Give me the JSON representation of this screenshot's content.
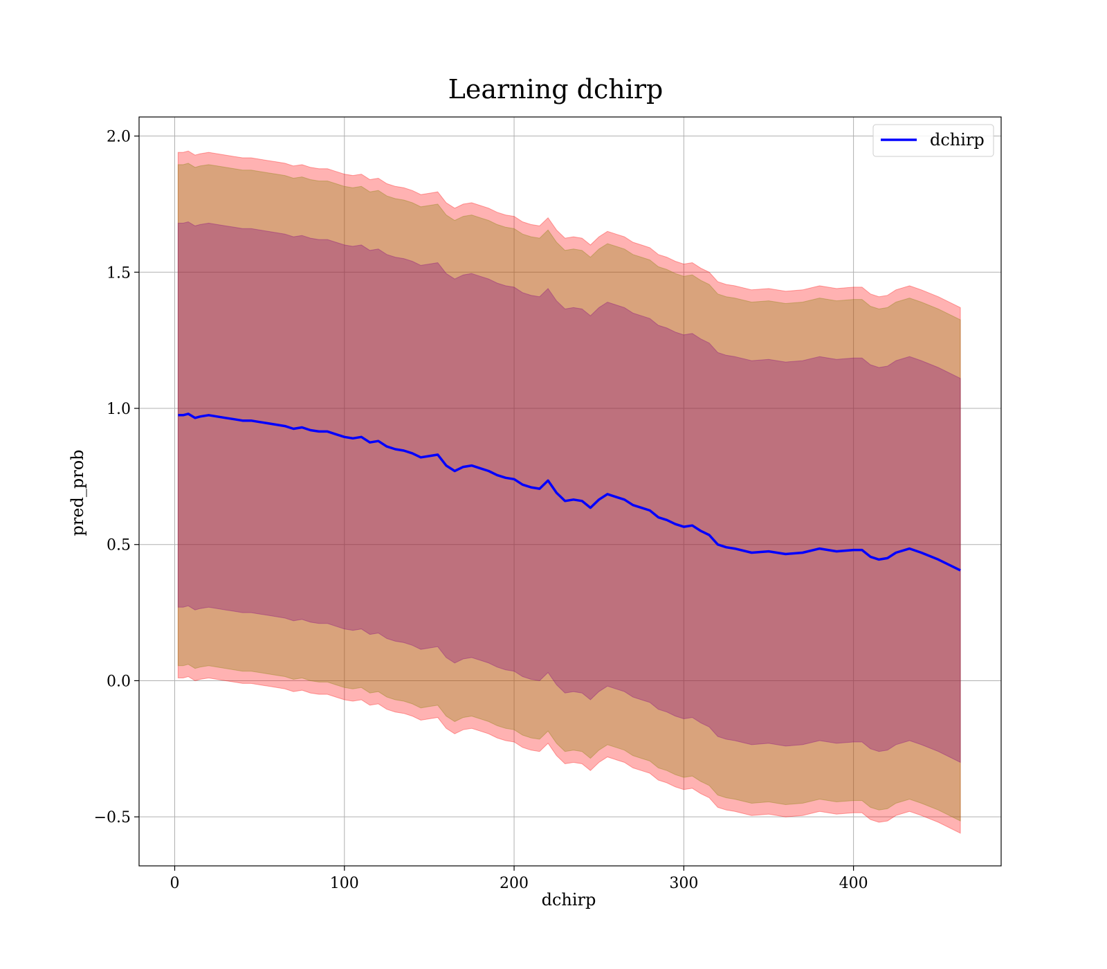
{
  "chart_data": {
    "type": "line",
    "title": "Learning dchirp",
    "xlabel": "dchirp",
    "ylabel": "pred_prob",
    "xlim": [
      -21,
      487
    ],
    "ylim": [
      -0.68,
      2.07
    ],
    "xticks": [
      0,
      100,
      200,
      300,
      400
    ],
    "yticks": [
      -0.5,
      0.0,
      0.5,
      1.0,
      1.5,
      2.0
    ],
    "ytick_labels": [
      "−0.5",
      "0.0",
      "0.5",
      "1.0",
      "1.5",
      "2.0"
    ],
    "grid": true,
    "legend": {
      "position": "top-right",
      "entries": [
        "dchirp"
      ]
    },
    "colors": {
      "line": "#0000ff",
      "band_outer": "#ff0000",
      "band_mid": "#808000",
      "band_inner": "#800080"
    },
    "series": [
      {
        "name": "dchirp",
        "x": [
          2,
          5,
          8,
          12,
          15,
          20,
          25,
          30,
          35,
          40,
          45,
          50,
          55,
          60,
          65,
          70,
          75,
          80,
          85,
          90,
          95,
          100,
          105,
          110,
          115,
          120,
          125,
          130,
          135,
          140,
          145,
          150,
          155,
          160,
          165,
          170,
          175,
          180,
          185,
          190,
          195,
          200,
          205,
          210,
          215,
          220,
          225,
          230,
          235,
          240,
          245,
          250,
          255,
          260,
          265,
          270,
          275,
          280,
          285,
          290,
          295,
          300,
          305,
          310,
          315,
          320,
          325,
          330,
          340,
          350,
          360,
          370,
          380,
          390,
          400,
          405,
          410,
          415,
          420,
          425,
          433,
          440,
          450,
          463
        ],
        "y": [
          0.975,
          0.975,
          0.98,
          0.965,
          0.97,
          0.975,
          0.97,
          0.965,
          0.96,
          0.955,
          0.955,
          0.95,
          0.945,
          0.94,
          0.935,
          0.925,
          0.93,
          0.92,
          0.915,
          0.915,
          0.905,
          0.895,
          0.89,
          0.895,
          0.875,
          0.88,
          0.86,
          0.85,
          0.845,
          0.835,
          0.82,
          0.825,
          0.83,
          0.79,
          0.77,
          0.785,
          0.79,
          0.78,
          0.77,
          0.755,
          0.745,
          0.74,
          0.72,
          0.71,
          0.705,
          0.735,
          0.69,
          0.66,
          0.665,
          0.66,
          0.635,
          0.665,
          0.685,
          0.675,
          0.665,
          0.645,
          0.635,
          0.625,
          0.6,
          0.59,
          0.575,
          0.565,
          0.57,
          0.55,
          0.535,
          0.5,
          0.49,
          0.485,
          0.47,
          0.475,
          0.465,
          0.47,
          0.485,
          0.475,
          0.48,
          0.48,
          0.455,
          0.445,
          0.45,
          0.47,
          0.485,
          0.47,
          0.445,
          0.405
        ],
        "band_inner_upper": [
          1.68,
          1.68,
          1.685,
          1.67,
          1.675,
          1.68,
          1.675,
          1.67,
          1.665,
          1.66,
          1.66,
          1.655,
          1.65,
          1.645,
          1.64,
          1.63,
          1.635,
          1.625,
          1.62,
          1.62,
          1.61,
          1.6,
          1.595,
          1.6,
          1.58,
          1.585,
          1.565,
          1.555,
          1.55,
          1.54,
          1.525,
          1.53,
          1.535,
          1.495,
          1.475,
          1.49,
          1.495,
          1.485,
          1.475,
          1.46,
          1.45,
          1.445,
          1.425,
          1.415,
          1.41,
          1.44,
          1.395,
          1.365,
          1.37,
          1.365,
          1.34,
          1.37,
          1.39,
          1.38,
          1.37,
          1.35,
          1.34,
          1.33,
          1.305,
          1.295,
          1.28,
          1.27,
          1.275,
          1.255,
          1.24,
          1.205,
          1.195,
          1.19,
          1.175,
          1.18,
          1.17,
          1.175,
          1.19,
          1.18,
          1.185,
          1.185,
          1.16,
          1.15,
          1.155,
          1.175,
          1.19,
          1.175,
          1.15,
          1.11
        ],
        "band_mid_upper": [
          1.895,
          1.895,
          1.9,
          1.885,
          1.89,
          1.895,
          1.89,
          1.885,
          1.88,
          1.875,
          1.875,
          1.87,
          1.865,
          1.86,
          1.855,
          1.845,
          1.85,
          1.84,
          1.835,
          1.835,
          1.825,
          1.815,
          1.81,
          1.815,
          1.795,
          1.8,
          1.78,
          1.77,
          1.765,
          1.755,
          1.74,
          1.745,
          1.75,
          1.71,
          1.69,
          1.705,
          1.71,
          1.7,
          1.69,
          1.675,
          1.665,
          1.66,
          1.64,
          1.63,
          1.625,
          1.655,
          1.61,
          1.58,
          1.585,
          1.58,
          1.555,
          1.585,
          1.605,
          1.595,
          1.585,
          1.565,
          1.555,
          1.545,
          1.52,
          1.51,
          1.495,
          1.485,
          1.49,
          1.47,
          1.455,
          1.42,
          1.41,
          1.405,
          1.39,
          1.395,
          1.385,
          1.39,
          1.405,
          1.395,
          1.4,
          1.4,
          1.375,
          1.365,
          1.37,
          1.39,
          1.405,
          1.39,
          1.365,
          1.325
        ],
        "band_outer_upper": [
          1.94,
          1.94,
          1.945,
          1.93,
          1.935,
          1.94,
          1.935,
          1.93,
          1.925,
          1.92,
          1.92,
          1.915,
          1.91,
          1.905,
          1.9,
          1.89,
          1.895,
          1.885,
          1.88,
          1.88,
          1.87,
          1.86,
          1.855,
          1.86,
          1.84,
          1.845,
          1.825,
          1.815,
          1.81,
          1.8,
          1.785,
          1.79,
          1.795,
          1.755,
          1.735,
          1.75,
          1.755,
          1.745,
          1.735,
          1.72,
          1.71,
          1.705,
          1.685,
          1.675,
          1.67,
          1.7,
          1.655,
          1.625,
          1.63,
          1.625,
          1.6,
          1.63,
          1.65,
          1.64,
          1.63,
          1.61,
          1.6,
          1.59,
          1.565,
          1.555,
          1.54,
          1.53,
          1.535,
          1.515,
          1.5,
          1.465,
          1.455,
          1.45,
          1.435,
          1.44,
          1.43,
          1.435,
          1.45,
          1.44,
          1.445,
          1.445,
          1.42,
          1.41,
          1.415,
          1.435,
          1.45,
          1.435,
          1.41,
          1.37
        ]
      }
    ]
  }
}
